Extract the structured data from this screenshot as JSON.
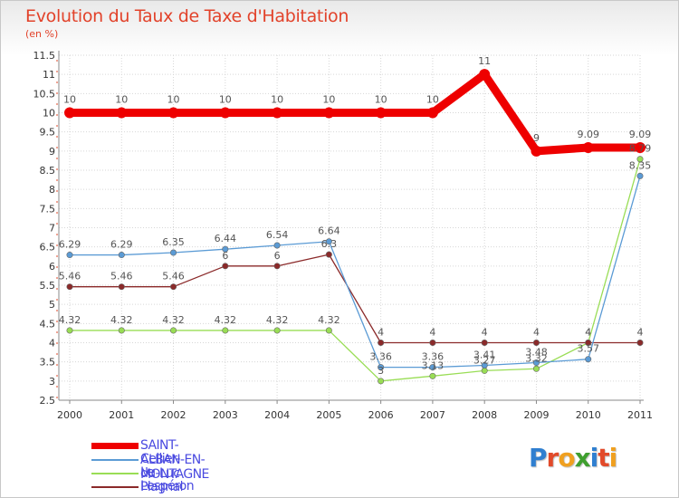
{
  "chart_data": {
    "type": "line",
    "title": "Evolution du Taux de Taxe d'Habitation",
    "subtitle": "(en %)",
    "xlabel": "",
    "ylabel": "(en %)",
    "x": [
      "2000",
      "2001",
      "2002",
      "2003",
      "2004",
      "2005",
      "2006",
      "2007",
      "2008",
      "2009",
      "2010",
      "2011"
    ],
    "ylim": [
      2.5,
      11.5
    ],
    "yticks": [
      "2.5",
      "3",
      "3.5",
      "4",
      "4.5",
      "5",
      "5.5",
      "6",
      "6.5",
      "7",
      "7.5",
      "8",
      "8.5",
      "9",
      "9.5",
      "10",
      "10.5",
      "11",
      "11.5"
    ],
    "grid": true,
    "legend_position": "bottom-left",
    "series": [
      {
        "name": "SAINT-ALBAN-EN-MONTAGNE",
        "color": "#ee0000",
        "values": [
          10,
          10,
          10,
          10,
          10,
          10,
          10,
          10,
          11,
          9,
          9.09,
          9.09
        ],
        "labels": [
          "10",
          "10",
          "10",
          "10",
          "10",
          "10",
          "10",
          "10",
          "11",
          "9",
          "9.09",
          "9.09"
        ]
      },
      {
        "name": "Cellier-du-Luc",
        "color": "#5b9bd5",
        "values": [
          6.29,
          6.29,
          6.35,
          6.44,
          6.54,
          6.64,
          3.36,
          3.36,
          3.41,
          3.48,
          3.57,
          8.35
        ],
        "labels": [
          "6.29",
          "6.29",
          "6.35",
          "6.44",
          "6.54",
          "6.64",
          "3.36",
          "3.36",
          "3.41",
          "3.48",
          "3.57",
          "8.35"
        ]
      },
      {
        "name": "Le Plagnal",
        "color": "#99dd55",
        "values": [
          4.32,
          4.32,
          4.32,
          4.32,
          4.32,
          4.32,
          3,
          3.13,
          3.27,
          3.32,
          4,
          8.79
        ],
        "labels": [
          "4.32",
          "4.32",
          "4.32",
          "4.32",
          "4.32",
          "4.32",
          "3",
          "3.13",
          "3.27",
          "3.32",
          "4",
          "8.79"
        ]
      },
      {
        "name": "Lespéron",
        "color": "#8b2a2a",
        "values": [
          5.46,
          5.46,
          5.46,
          6,
          6,
          6.3,
          4,
          4,
          4,
          4,
          4,
          4
        ],
        "labels": [
          "5.46",
          "5.46",
          "5.46",
          "6",
          "6",
          "6.3",
          "4",
          "4",
          "4",
          "4",
          "4",
          "4"
        ]
      }
    ]
  },
  "logo": {
    "letters": [
      {
        "ch": "P",
        "color": "#2f7fd0"
      },
      {
        "ch": "r",
        "color": "#e24a2a"
      },
      {
        "ch": "o",
        "color": "#f0a020"
      },
      {
        "ch": "x",
        "color": "#3f9f2f"
      },
      {
        "ch": "i",
        "color": "#2f7fd0"
      },
      {
        "ch": "t",
        "color": "#e24a2a"
      },
      {
        "ch": "i",
        "color": "#f0a020"
      }
    ]
  }
}
